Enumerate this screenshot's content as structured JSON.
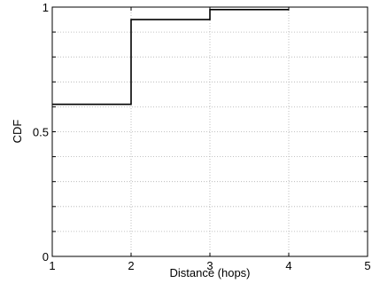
{
  "chart_data": {
    "type": "line",
    "subtype": "step-cdf",
    "title": "",
    "xlabel": "Distance (hops)",
    "ylabel": "CDF",
    "xlim": [
      1,
      5
    ],
    "ylim": [
      0,
      1
    ],
    "xticks": [
      "1",
      "2",
      "3",
      "4",
      "5"
    ],
    "yticks": [
      "0",
      "0.5",
      "1"
    ],
    "grid": true,
    "series": [
      {
        "x": [
          1,
          2,
          2,
          3,
          3,
          4
        ],
        "y": [
          0.61,
          0.61,
          0.95,
          0.95,
          0.99,
          0.99
        ]
      }
    ]
  }
}
